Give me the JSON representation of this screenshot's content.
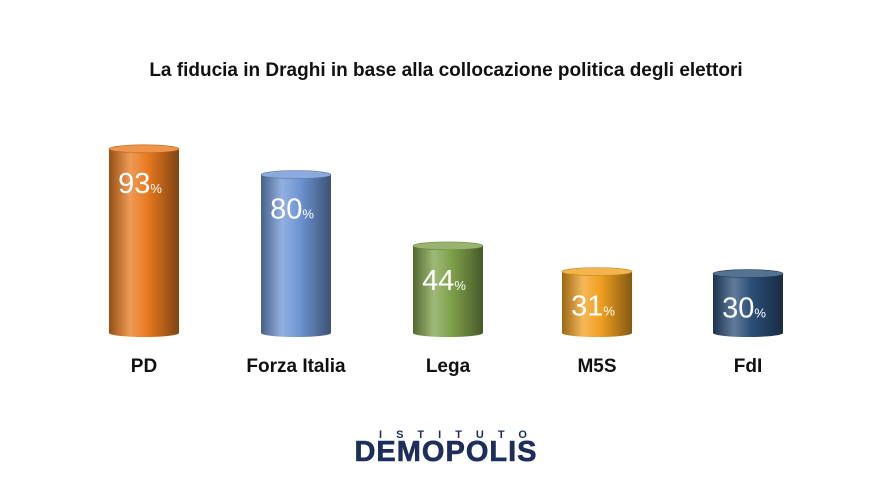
{
  "chart_data": {
    "type": "bar",
    "title": "La fiducia in Draghi in base alla collocazione politica degli elettori",
    "categories": [
      "PD",
      "Forza Italia",
      "Lega",
      "M5S",
      "FdI"
    ],
    "values": [
      93,
      80,
      44,
      31,
      30
    ],
    "value_suffix": "%",
    "ylim": [
      0,
      100
    ],
    "bar_colors": [
      "#e87a1f",
      "#6f95d4",
      "#7fa14a",
      "#f0a020",
      "#2b4f78"
    ],
    "grid": false,
    "legend": "none"
  },
  "logo": {
    "top_text": "ISTITUTO",
    "main_text": "DEMOPOLIS"
  }
}
